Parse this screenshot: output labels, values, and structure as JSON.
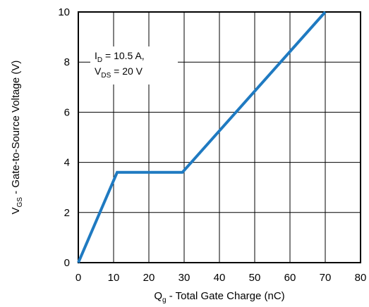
{
  "chart_data": {
    "type": "line",
    "x": [
      0,
      11,
      29.5,
      70
    ],
    "series": [
      {
        "values": [
          0,
          3.6,
          3.6,
          10
        ],
        "color": "#1f7ac1"
      }
    ],
    "xlim": [
      0,
      80
    ],
    "ylim": [
      0,
      10
    ],
    "xticks": [
      0,
      10,
      20,
      30,
      40,
      50,
      60,
      70,
      80
    ],
    "yticks": [
      0,
      2,
      4,
      6,
      8,
      10
    ],
    "xlabel": {
      "main": "Q",
      "sub": "g",
      "rest": " - Total Gate Charge (nC)"
    },
    "ylabel": {
      "main": "V",
      "sub": "GS",
      "rest": " - Gate-to-Source Voltage (V)"
    },
    "annotation": {
      "line1": {
        "main": "I",
        "sub": "D",
        "rest": " = 10.5 A,"
      },
      "line2": {
        "main": "V",
        "sub": "DS",
        "rest": " = 20 V"
      }
    },
    "grid": true,
    "legend": "none"
  }
}
